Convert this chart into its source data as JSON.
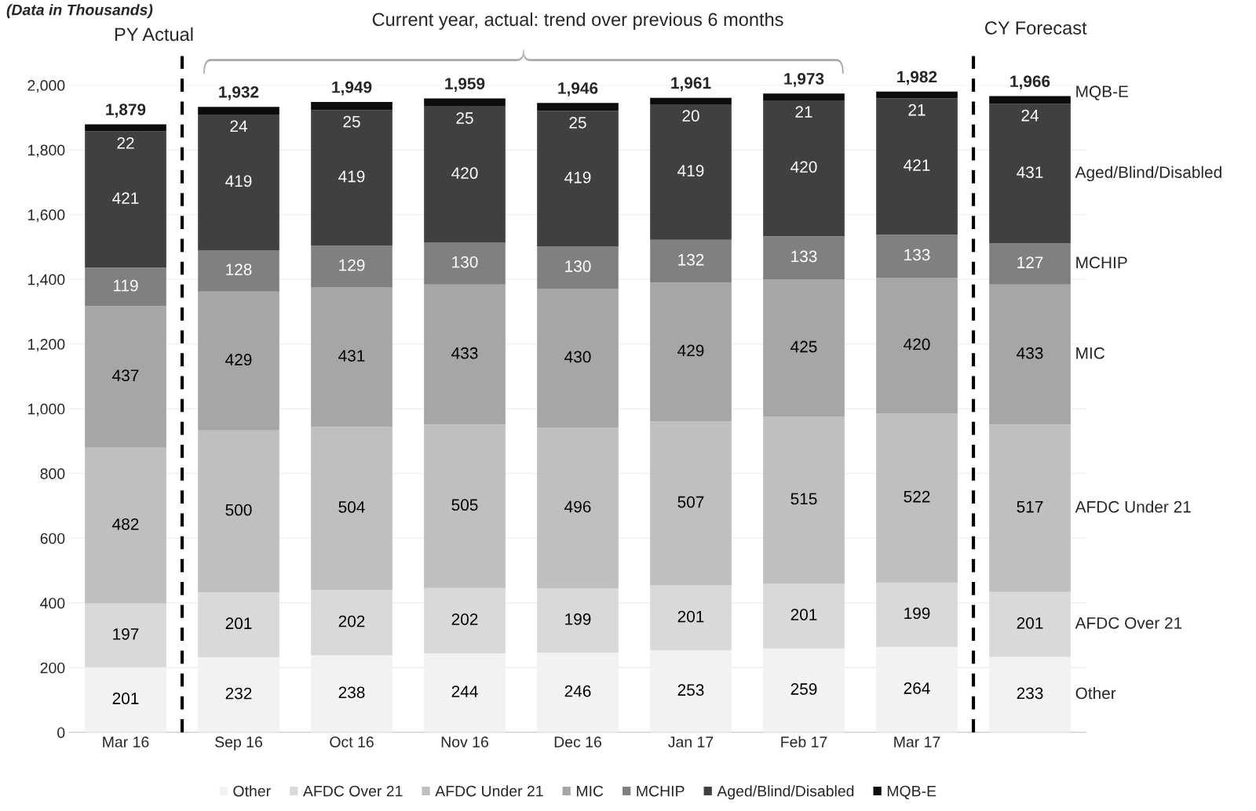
{
  "chart_data": {
    "type": "bar",
    "stacked": true,
    "categories": [
      "Mar 16",
      "Sep 16",
      "Oct 16",
      "Nov 16",
      "Dec 16",
      "Jan 17",
      "Feb 17",
      "Mar 17",
      null
    ],
    "series": [
      {
        "name": "Other",
        "color": "#f2f2f2",
        "values": [
          201,
          232,
          238,
          244,
          246,
          253,
          259,
          264,
          233
        ]
      },
      {
        "name": "AFDC Over 21",
        "color": "#d9d9d9",
        "values": [
          197,
          201,
          202,
          202,
          199,
          201,
          201,
          199,
          201
        ]
      },
      {
        "name": "AFDC Under 21",
        "color": "#bfbfbf",
        "values": [
          482,
          500,
          504,
          505,
          496,
          507,
          515,
          522,
          517
        ]
      },
      {
        "name": "MIC",
        "color": "#a6a6a6",
        "values": [
          437,
          429,
          431,
          433,
          430,
          429,
          425,
          420,
          433
        ]
      },
      {
        "name": "MCHIP",
        "color": "#808080",
        "values": [
          119,
          128,
          129,
          130,
          130,
          132,
          133,
          133,
          127
        ]
      },
      {
        "name": "Aged/Blind/Disabled",
        "color": "#404040",
        "values": [
          421,
          419,
          419,
          420,
          419,
          419,
          420,
          421,
          431
        ]
      },
      {
        "name": "MQB-E",
        "color": "#0d0d0d",
        "values": [
          22,
          24,
          25,
          25,
          25,
          20,
          21,
          21,
          24
        ]
      }
    ],
    "totals": [
      "1,879",
      "1,932",
      "1,949",
      "1,959",
      "1,946",
      "1,961",
      "1,973",
      "1,982",
      "1,966"
    ],
    "data_labels": true,
    "ylim": [
      0,
      2000
    ],
    "yticks": [
      0,
      200,
      400,
      600,
      800,
      {
        "value": 1000,
        "label": "1,000"
      },
      {
        "value": 1200,
        "label": "1,200"
      },
      {
        "value": 1400,
        "label": "1,400"
      },
      {
        "value": 1600,
        "label": "1,600"
      },
      {
        "value": 1800,
        "label": "1,800"
      },
      {
        "value": 2000,
        "label": "2,000"
      }
    ],
    "grid": "y",
    "legend": "bottom",
    "annotations": [
      "(Data in Thousands)",
      "PY Actual",
      "Current year, actual: trend over previous 6 months",
      "CY Forecast"
    ]
  }
}
